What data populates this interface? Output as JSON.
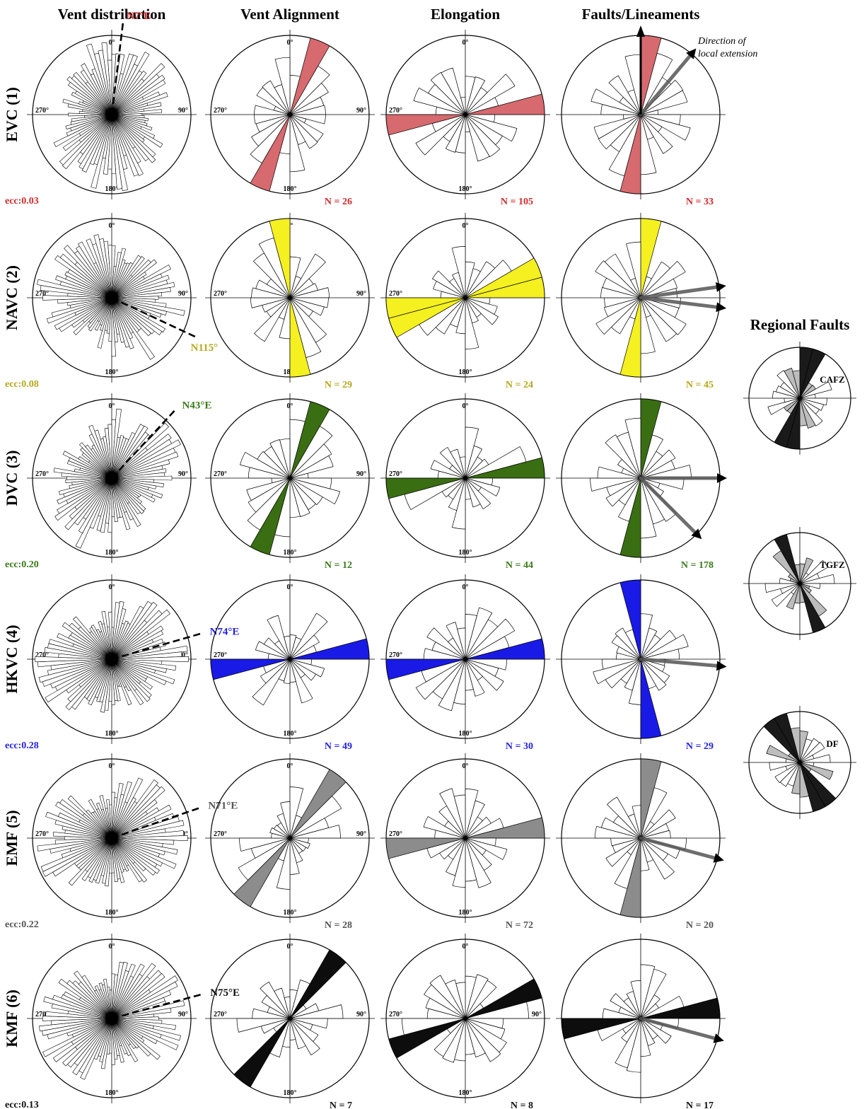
{
  "page": {
    "column_titles": [
      "Vent distribution",
      "Vent Alignment",
      "Elongation",
      "Faults/Lineaments"
    ],
    "regional_title": "Regional Faults",
    "extension_note": [
      "Direction of",
      "local extension"
    ],
    "tick_labels": {
      "north": "0°",
      "east": "90°",
      "south": "180°",
      "west": "270°"
    }
  },
  "chart_data": [
    {
      "type": "rose",
      "field": "EVC (1)",
      "color": "#d66a6e",
      "label_color": "#d12a2a",
      "vent_distribution": {
        "eccentricity_label": "ecc:0.03",
        "trend_label": "N7°E",
        "trend_deg": 7
      },
      "vent_alignment": {
        "count_label": "N = 26",
        "dominant_deg": 22
      },
      "elongation": {
        "count_label": "N = 105",
        "dominant_deg": 80
      },
      "faults_lineaments": {
        "count_label": "N = 33",
        "dominant_deg": 5,
        "extension_deg": [
          40
        ]
      }
    },
    {
      "type": "rose",
      "field": "NAVC (2)",
      "color": "#f5f020",
      "label_color": "#b5a81c",
      "vent_distribution": {
        "eccentricity_label": "ecc:0.08",
        "trend_label": "N115°",
        "trend_deg": 115
      },
      "vent_alignment": {
        "count_label": "N = 29",
        "dominant_deg": 175
      },
      "elongation": {
        "count_label": "N = 24",
        "dominant_deg": 75
      },
      "faults_lineaments": {
        "count_label": "N = 45",
        "dominant_deg": 5,
        "extension_deg": [
          82,
          97
        ]
      }
    },
    {
      "type": "rose",
      "field": "DVC (3)",
      "color": "#3a6e12",
      "label_color": "#3a7a1a",
      "vent_distribution": {
        "eccentricity_label": "ecc:0.20",
        "trend_label": "N43°E",
        "trend_deg": 43
      },
      "vent_alignment": {
        "count_label": "N = 12",
        "dominant_deg": 25
      },
      "elongation": {
        "count_label": "N = 44",
        "dominant_deg": 80
      },
      "faults_lineaments": {
        "count_label": "N = 178",
        "dominant_deg": 5,
        "extension_deg": [
          90,
          135
        ]
      }
    },
    {
      "type": "rose",
      "field": "HKVC (4)",
      "color": "#1a1ae6",
      "label_color": "#2323e0",
      "vent_distribution": {
        "eccentricity_label": "ecc:0.28",
        "trend_label": "N74°E",
        "trend_deg": 74
      },
      "vent_alignment": {
        "count_label": "N = 49",
        "dominant_deg": 80
      },
      "elongation": {
        "count_label": "N = 30",
        "dominant_deg": 80
      },
      "faults_lineaments": {
        "count_label": "N = 29",
        "dominant_deg": 175,
        "extension_deg": [
          95
        ]
      }
    },
    {
      "type": "rose",
      "field": "EMF (5)",
      "color": "#8c8c8c",
      "label_color": "#555555",
      "vent_distribution": {
        "eccentricity_label": "ecc:0.22",
        "trend_label": "N71°E",
        "trend_deg": 71
      },
      "vent_alignment": {
        "count_label": "N = 28",
        "dominant_deg": 35
      },
      "elongation": {
        "count_label": "N = 72",
        "dominant_deg": 80
      },
      "faults_lineaments": {
        "count_label": "N = 20",
        "dominant_deg": 5,
        "extension_deg": [
          105
        ]
      }
    },
    {
      "type": "rose",
      "field": "KMF (6)",
      "color": "#0d0d0d",
      "label_color": "#111111",
      "vent_distribution": {
        "eccentricity_label": "ecc:0.13",
        "trend_label": "N75°E",
        "trend_deg": 75
      },
      "vent_alignment": {
        "count_label": "N = 7",
        "dominant_deg": 35
      },
      "elongation": {
        "count_label": "N = 8",
        "dominant_deg": 65
      },
      "faults_lineaments": {
        "count_label": "N = 17",
        "dominant_deg": 80,
        "extension_deg": [
          105
        ]
      }
    },
    {
      "type": "rose",
      "field": "CAFZ",
      "color": "#1a1a1a",
      "secondary_color": "#bdbdbd",
      "dominant_deg": 15
    },
    {
      "type": "rose",
      "field": "TGFZ",
      "color": "#1a1a1a",
      "secondary_color": "#bdbdbd",
      "dominant_deg": 160
    },
    {
      "type": "rose",
      "field": "DF",
      "color": "#1a1a1a",
      "secondary_color": "#bdbdbd",
      "dominant_deg": 150
    }
  ]
}
